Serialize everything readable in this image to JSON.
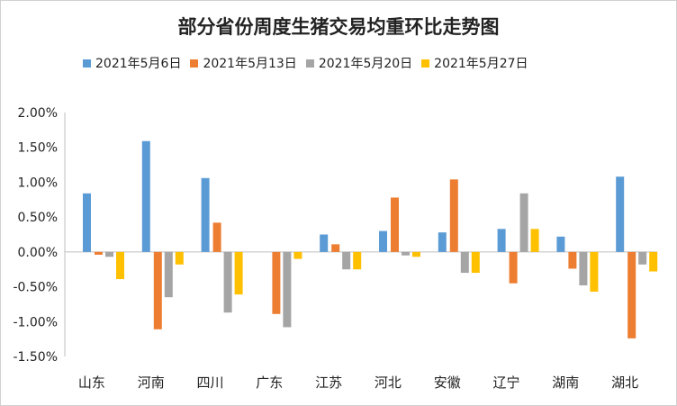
{
  "chart_data": {
    "type": "bar",
    "title": "部分省份周度生猪交易均重环比走势图",
    "xlabel": "",
    "ylabel": "",
    "categories": [
      "山东",
      "河南",
      "四川",
      "广东",
      "江苏",
      "河北",
      "安徽",
      "辽宁",
      "湖南",
      "湖北"
    ],
    "series": [
      {
        "name": "2021年5月6日",
        "color": "#5b9bd5",
        "values": [
          0.84,
          1.59,
          1.06,
          0.0,
          0.25,
          0.3,
          0.28,
          0.33,
          0.22,
          1.08
        ]
      },
      {
        "name": "2021年5月13日",
        "color": "#ed7d31",
        "values": [
          -0.04,
          -1.11,
          0.42,
          -0.89,
          0.11,
          0.78,
          1.04,
          -0.45,
          -0.24,
          -1.24
        ]
      },
      {
        "name": "2021年5月20日",
        "color": "#a5a5a5",
        "values": [
          -0.07,
          -0.65,
          -0.87,
          -1.08,
          -0.25,
          -0.05,
          -0.3,
          0.84,
          -0.48,
          -0.18
        ]
      },
      {
        "name": "2021年5月27日",
        "color": "#ffc000",
        "values": [
          -0.39,
          -0.18,
          -0.61,
          -0.1,
          -0.25,
          -0.07,
          -0.3,
          0.33,
          -0.57,
          -0.28
        ]
      }
    ],
    "ylim": [
      -1.5,
      2.0
    ],
    "yticks": [
      "2.00%",
      "1.50%",
      "1.00%",
      "0.50%",
      "0.00%",
      "-0.50%",
      "-1.00%",
      "-1.50%"
    ],
    "ytick_values": [
      2.0,
      1.5,
      1.0,
      0.5,
      0.0,
      -0.5,
      -1.0,
      -1.5
    ],
    "grid": false,
    "legend_position": "top"
  }
}
